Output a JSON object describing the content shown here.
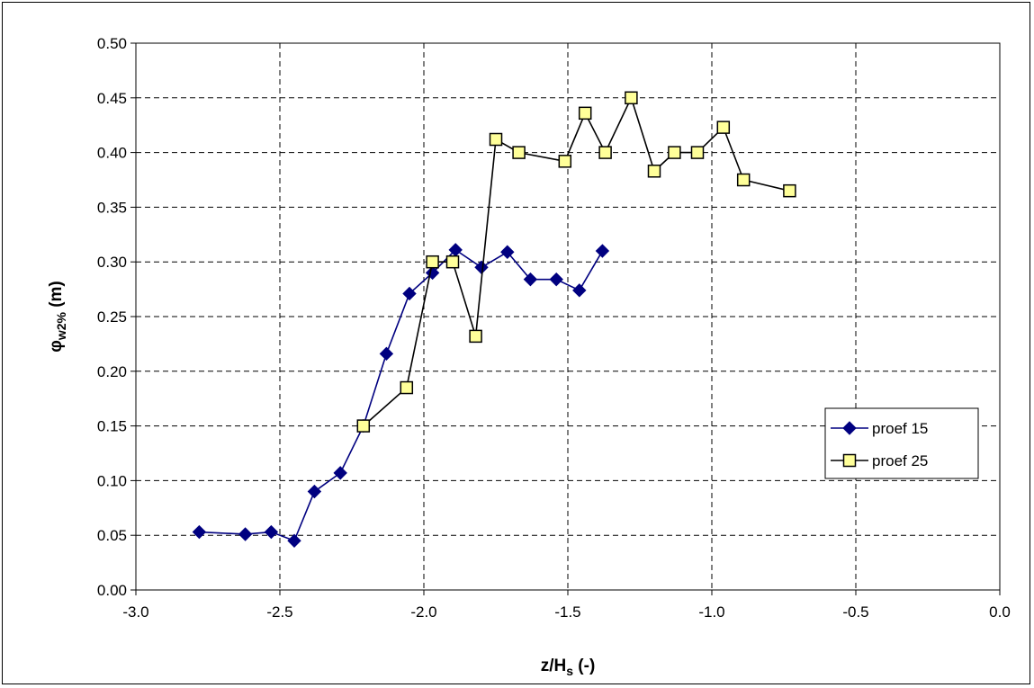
{
  "chart_data": {
    "type": "line",
    "xlabel": {
      "base": "z/H",
      "sub": "s",
      "tail": " (-)"
    },
    "ylabel": {
      "base": "φ",
      "sub": "w2%",
      "tail": " (m)"
    },
    "xlim": [
      -3.0,
      0.0
    ],
    "ylim": [
      0.0,
      0.5
    ],
    "xticks": [
      "-3.0",
      "-2.5",
      "-2.0",
      "-1.5",
      "-1.0",
      "-0.5",
      "0.0"
    ],
    "yticks": [
      "0.00",
      "0.05",
      "0.10",
      "0.15",
      "0.20",
      "0.25",
      "0.30",
      "0.35",
      "0.40",
      "0.45",
      "0.50"
    ],
    "grid": true,
    "legend_position": "right",
    "series": [
      {
        "name": "proef 15",
        "color": "#000080",
        "marker": "diamond",
        "x": [
          -2.78,
          -2.62,
          -2.53,
          -2.45,
          -2.38,
          -2.29,
          -2.21,
          -2.13,
          -2.05,
          -1.97,
          -1.89,
          -1.8,
          -1.71,
          -1.63,
          -1.54,
          -1.46,
          -1.38
        ],
        "y": [
          0.053,
          0.051,
          0.053,
          0.045,
          0.09,
          0.107,
          0.15,
          0.216,
          0.271,
          0.29,
          0.311,
          0.295,
          0.309,
          0.284,
          0.284,
          0.274,
          0.31
        ]
      },
      {
        "name": "proef 25",
        "color": "#000000",
        "fill": "#ffff99",
        "marker": "square",
        "x": [
          -2.21,
          -2.06,
          -1.97,
          -1.9,
          -1.82,
          -1.75,
          -1.67,
          -1.51,
          -1.44,
          -1.37,
          -1.28,
          -1.2,
          -1.13,
          -1.05,
          -0.96,
          -0.89,
          -0.73
        ],
        "y": [
          0.15,
          0.185,
          0.3,
          0.3,
          0.232,
          0.412,
          0.4,
          0.392,
          0.436,
          0.4,
          0.45,
          0.383,
          0.4,
          0.4,
          0.423,
          0.375,
          0.365
        ]
      }
    ]
  }
}
